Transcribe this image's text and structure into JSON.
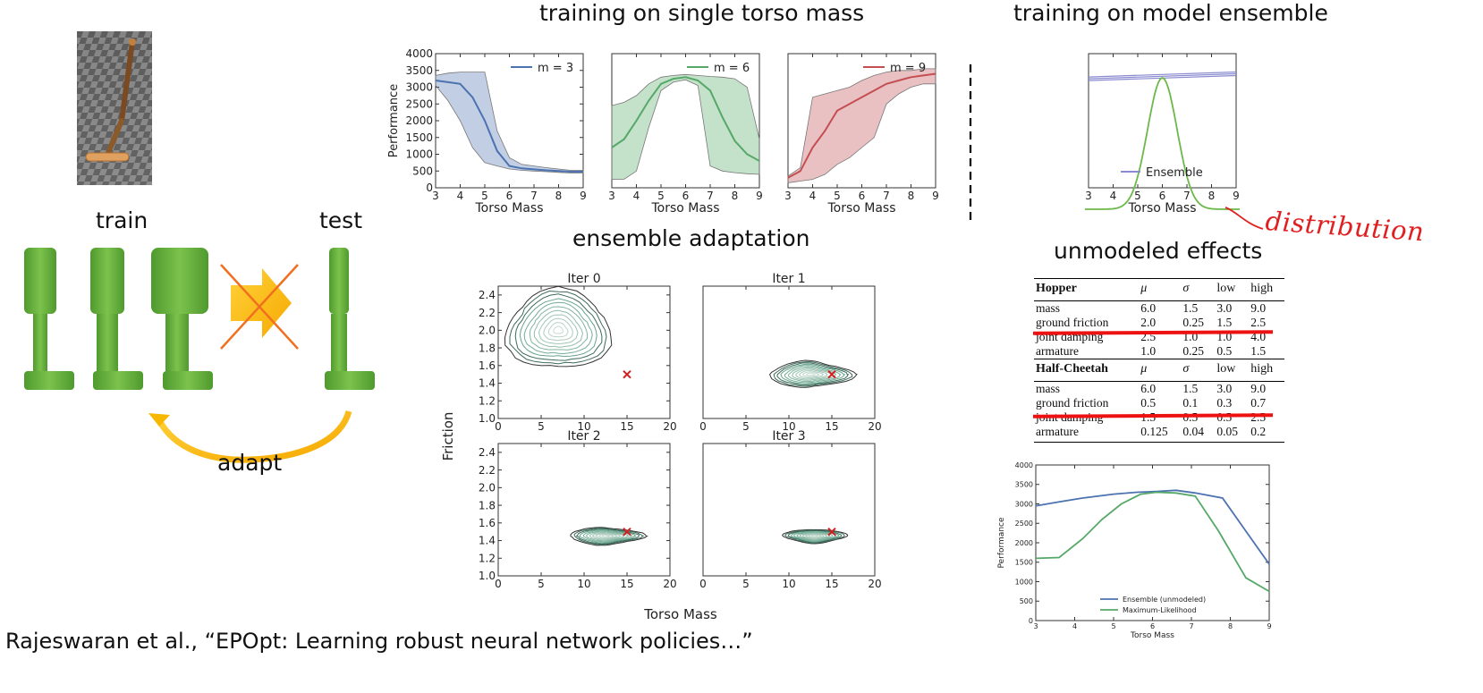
{
  "titles": {
    "single": "training on single torso mass",
    "ensemble": "training on model ensemble",
    "adaptation": "ensemble adaptation",
    "unmodeled": "unmodeled effects"
  },
  "left": {
    "train": "train",
    "test": "test",
    "adapt": "adapt"
  },
  "annotation": "distribution",
  "caption": "Rajeswaran et al., “EPOpt: Learning robust neural network policies…”",
  "chart_data": [
    {
      "type": "area",
      "id": "m3",
      "xlabel": "Torso Mass",
      "ylabel": "Performance",
      "xlim": [
        3,
        9
      ],
      "ylim": [
        0,
        4000
      ],
      "xticks": [
        "3",
        "4",
        "5",
        "6",
        "7",
        "8",
        "9"
      ],
      "yticks": [
        "0",
        "500",
        "1000",
        "1500",
        "2000",
        "2500",
        "3000",
        "3500",
        "4000"
      ],
      "legend": "m = 3",
      "color": "#4c72b0",
      "x": [
        3,
        3.5,
        4,
        4.5,
        5,
        5.5,
        6,
        6.5,
        7,
        7.5,
        8,
        8.5,
        9
      ],
      "mean": [
        3200,
        3150,
        3100,
        2700,
        2000,
        1100,
        650,
        580,
        550,
        520,
        500,
        480,
        480
      ],
      "upper": [
        3350,
        3420,
        3450,
        3450,
        3450,
        1700,
        900,
        700,
        650,
        600,
        560,
        520,
        520
      ],
      "lower": [
        3050,
        2600,
        2000,
        1200,
        750,
        650,
        560,
        520,
        500,
        480,
        460,
        440,
        440
      ]
    },
    {
      "type": "area",
      "id": "m6",
      "xlabel": "Torso Mass",
      "xlim": [
        3,
        9
      ],
      "ylim": [
        0,
        4000
      ],
      "xticks": [
        "3",
        "4",
        "5",
        "6",
        "7",
        "8",
        "9"
      ],
      "legend": "m = 6",
      "color": "#55a868",
      "x": [
        3,
        3.5,
        4,
        4.5,
        5,
        5.5,
        6,
        6.5,
        7,
        7.5,
        8,
        8.5,
        9
      ],
      "mean": [
        1200,
        1450,
        2000,
        2600,
        3100,
        3250,
        3300,
        3200,
        2900,
        2100,
        1400,
        1000,
        800
      ],
      "upper": [
        2450,
        2550,
        2750,
        3100,
        3300,
        3350,
        3380,
        3350,
        3320,
        3300,
        3250,
        3000,
        1450
      ],
      "lower": [
        250,
        260,
        500,
        1800,
        2900,
        3150,
        3220,
        3050,
        650,
        500,
        450,
        420,
        400
      ]
    },
    {
      "type": "area",
      "id": "m9",
      "xlabel": "Torso Mass",
      "xlim": [
        3,
        9
      ],
      "ylim": [
        0,
        4000
      ],
      "xticks": [
        "3",
        "4",
        "5",
        "6",
        "7",
        "8",
        "9"
      ],
      "legend": "m = 9",
      "color": "#c44e52",
      "x": [
        3,
        3.5,
        4,
        4.5,
        5,
        5.5,
        6,
        6.5,
        7,
        7.5,
        8,
        8.5,
        9
      ],
      "mean": [
        300,
        500,
        1200,
        1700,
        2300,
        2500,
        2700,
        2900,
        3100,
        3200,
        3300,
        3350,
        3400
      ],
      "upper": [
        350,
        600,
        2700,
        2800,
        2900,
        3000,
        3200,
        3350,
        3450,
        3500,
        3500,
        3550,
        3550
      ],
      "lower": [
        150,
        200,
        250,
        400,
        700,
        900,
        1200,
        1500,
        2500,
        2800,
        3000,
        3100,
        3100
      ]
    },
    {
      "type": "line",
      "id": "ensemble",
      "xlabel": "Torso Mass",
      "xlim": [
        3,
        9
      ],
      "ylim": [
        0,
        4000
      ],
      "xticks": [
        "3",
        "4",
        "5",
        "6",
        "7",
        "8",
        "9"
      ],
      "legend": "Ensemble",
      "series": [
        {
          "name": "Ensemble",
          "x": [
            3,
            9
          ],
          "values": [
            3250,
            3400
          ]
        }
      ],
      "distribution": {
        "mean": 6,
        "std": 0.6
      }
    },
    {
      "type": "contour",
      "id": "adaptation",
      "xlabel": "Torso Mass",
      "ylabel": "Friction",
      "xlim": [
        0,
        20
      ],
      "ylim": [
        1.0,
        2.5
      ],
      "xticks": [
        "0",
        "5",
        "10",
        "15",
        "20"
      ],
      "yticks": [
        "1.0",
        "1.2",
        "1.4",
        "1.6",
        "1.8",
        "2.0",
        "2.2",
        "2.4"
      ],
      "true_param": [
        15,
        1.5
      ],
      "panels": [
        {
          "title": "Iter 0",
          "center": [
            7,
            2.0
          ],
          "spread": [
            6,
            0.45
          ]
        },
        {
          "title": "Iter 1",
          "center": [
            12.5,
            1.5
          ],
          "spread": [
            4,
            0.15
          ]
        },
        {
          "title": "Iter 2",
          "center": [
            12.5,
            1.45
          ],
          "spread": [
            3.5,
            0.1
          ]
        },
        {
          "title": "Iter 3",
          "center": [
            13,
            1.45
          ],
          "spread": [
            3,
            0.08
          ]
        }
      ]
    },
    {
      "type": "table",
      "id": "unmodeled-table",
      "sections": [
        {
          "header": [
            "Hopper",
            "μ",
            "σ",
            "low",
            "high"
          ],
          "rows": [
            [
              "mass",
              "6.0",
              "1.5",
              "3.0",
              "9.0"
            ],
            [
              "ground friction",
              "2.0",
              "0.25",
              "1.5",
              "2.5"
            ],
            [
              "joint damping",
              "2.5",
              "1.0",
              "1.0",
              "4.0"
            ],
            [
              "armature",
              "1.0",
              "0.25",
              "0.5",
              "1.5"
            ]
          ]
        },
        {
          "header": [
            "Half-Cheetah",
            "μ",
            "σ",
            "low",
            "high"
          ],
          "rows": [
            [
              "mass",
              "6.0",
              "1.5",
              "3.0",
              "9.0"
            ],
            [
              "ground friction",
              "0.5",
              "0.1",
              "0.3",
              "0.7"
            ],
            [
              "joint damping",
              "1.5",
              "0.5",
              "0.5",
              "2.5"
            ],
            [
              "armature",
              "0.125",
              "0.04",
              "0.05",
              "0.2"
            ]
          ]
        }
      ]
    },
    {
      "type": "line",
      "id": "unmodeled-perf",
      "xlabel": "Torso Mass",
      "ylabel": "Performance",
      "xlim": [
        3,
        9
      ],
      "ylim": [
        0,
        4000
      ],
      "xticks": [
        "3",
        "4",
        "5",
        "6",
        "7",
        "8",
        "9"
      ],
      "yticks": [
        "0",
        "500",
        "1000",
        "1500",
        "2000",
        "2500",
        "3000",
        "3500",
        "4000"
      ],
      "series": [
        {
          "name": "Ensemble (unmodeled)",
          "color": "#4c72b0",
          "x": [
            3,
            3.6,
            4.2,
            5,
            5.6,
            6.1,
            6.6,
            7.1,
            7.8,
            8.4,
            9
          ],
          "values": [
            2950,
            3050,
            3150,
            3250,
            3300,
            3320,
            3350,
            3280,
            3150,
            2300,
            1450
          ]
        },
        {
          "name": "Maximum-Likelihood",
          "color": "#55a868",
          "x": [
            3,
            3.6,
            4.2,
            4.7,
            5.2,
            5.7,
            6.1,
            6.6,
            7.1,
            7.7,
            8.4,
            9
          ],
          "values": [
            1600,
            1620,
            2100,
            2600,
            3000,
            3250,
            3300,
            3280,
            3200,
            2300,
            1100,
            750
          ]
        }
      ]
    }
  ]
}
